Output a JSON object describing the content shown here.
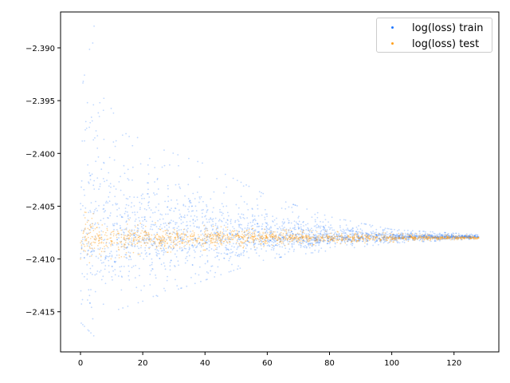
{
  "chart_data": {
    "type": "scatter",
    "title": "",
    "xlabel": "",
    "ylabel": "",
    "xlim": [
      -6.4,
      134.4
    ],
    "ylim": [
      -2.4188,
      -2.3866
    ],
    "xticks": [
      0,
      20,
      40,
      60,
      80,
      100,
      120
    ],
    "xtick_labels": [
      "0",
      "20",
      "40",
      "60",
      "80",
      "100",
      "120"
    ],
    "yticks": [
      -2.39,
      -2.395,
      -2.4,
      -2.405,
      -2.41,
      -2.415
    ],
    "ytick_labels": [
      "−2.390",
      "−2.395",
      "−2.400",
      "−2.405",
      "−2.410",
      "−2.415"
    ],
    "grid": false,
    "legend_position": "top-right",
    "series": [
      {
        "name": "log(loss) train",
        "color": "#1f77ff",
        "center": -2.4079,
        "x_range": [
          0,
          128
        ],
        "spread_profile": [
          {
            "x": 0,
            "y_min": -2.416,
            "y_max": -2.3945
          },
          {
            "x": 5,
            "y_min": -2.4175,
            "y_max": -2.387
          },
          {
            "x": 10,
            "y_min": -2.415,
            "y_max": -2.396
          },
          {
            "x": 20,
            "y_min": -2.414,
            "y_max": -2.399
          },
          {
            "x": 40,
            "y_min": -2.412,
            "y_max": -2.401
          },
          {
            "x": 60,
            "y_min": -2.41,
            "y_max": -2.404
          },
          {
            "x": 80,
            "y_min": -2.4092,
            "y_max": -2.406
          },
          {
            "x": 100,
            "y_min": -2.4085,
            "y_max": -2.4072
          },
          {
            "x": 128,
            "y_min": -2.4081,
            "y_max": -2.4077
          }
        ]
      },
      {
        "name": "log(loss) test",
        "color": "#ff9f1c",
        "center": -2.408,
        "x_range": [
          0,
          128
        ],
        "spread_profile": [
          {
            "x": 0,
            "y_min": -2.4105,
            "y_max": -2.4055
          },
          {
            "x": 20,
            "y_min": -2.4095,
            "y_max": -2.4065
          },
          {
            "x": 60,
            "y_min": -2.4088,
            "y_max": -2.4072
          },
          {
            "x": 128,
            "y_min": -2.4081,
            "y_max": -2.4078
          }
        ]
      }
    ]
  }
}
